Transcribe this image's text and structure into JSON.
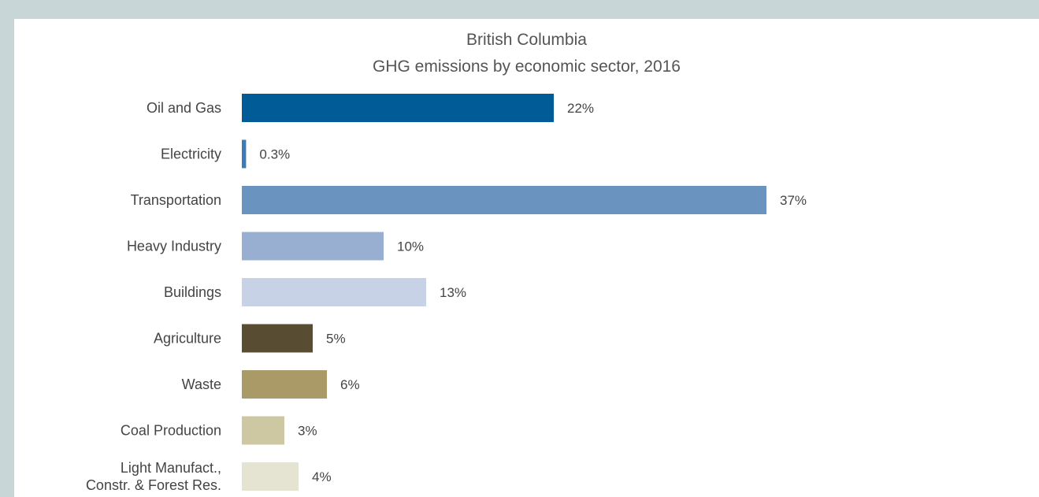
{
  "chart_data": {
    "type": "bar",
    "orientation": "horizontal",
    "title": "British Columbia",
    "subtitle": "GHG emissions by economic sector, 2016",
    "xlabel": "",
    "ylabel": "",
    "grid": false,
    "xlim": [
      0,
      37
    ],
    "categories": [
      [
        "Oil and Gas"
      ],
      [
        "Electricity"
      ],
      [
        "Transportation"
      ],
      [
        "Heavy Industry"
      ],
      [
        "Buildings"
      ],
      [
        "Agriculture"
      ],
      [
        "Waste"
      ],
      [
        "Coal Production"
      ],
      [
        "Light Manufact.,",
        "Constr. & Forest Res."
      ]
    ],
    "values": [
      22,
      0.3,
      37,
      10,
      13,
      5,
      6,
      3,
      4
    ],
    "value_labels": [
      "22%",
      "0.3%",
      "37%",
      "10%",
      "13%",
      "5%",
      "6%",
      "3%",
      "4%"
    ],
    "colors": [
      "#005b96",
      "#3d7ab8",
      "#6b93bf",
      "#98afd1",
      "#c8d2e6",
      "#584d32",
      "#a99a68",
      "#cdc7a2",
      "#e5e3d1"
    ]
  }
}
